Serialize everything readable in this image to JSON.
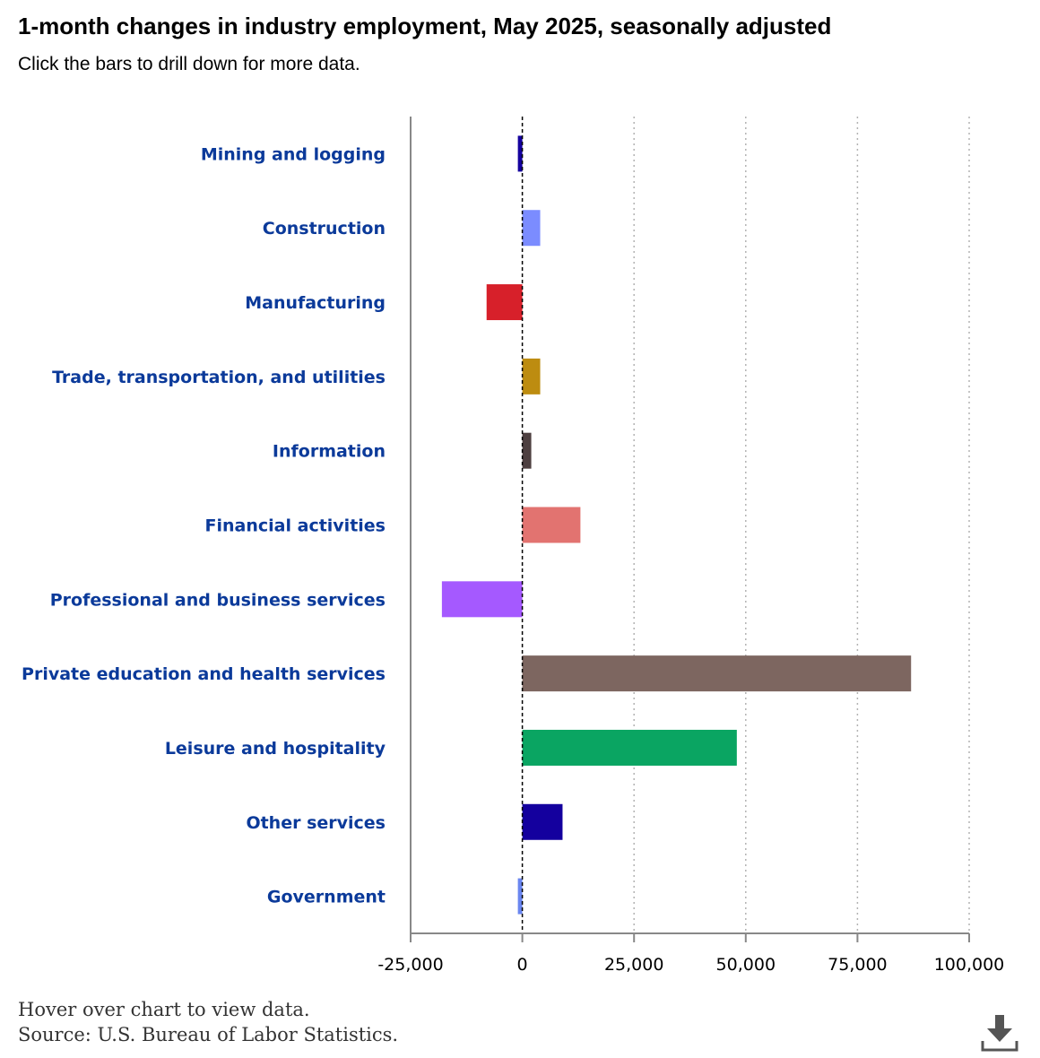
{
  "chart_data": {
    "type": "bar",
    "orientation": "horizontal",
    "title": "1-month changes in industry employment, May 2025, seasonally adjusted",
    "subtitle": "Click the bars to drill down for more data.",
    "categories": [
      "Mining and logging",
      "Construction",
      "Manufacturing",
      "Trade, transportation, and utilities",
      "Information",
      "Financial activities",
      "Professional and business services",
      "Private education and health services",
      "Leisure and hospitality",
      "Other services",
      "Government"
    ],
    "values": [
      -1000,
      4000,
      -8000,
      4000,
      2000,
      13000,
      -18000,
      87000,
      48000,
      9000,
      -1000
    ],
    "colors": [
      "#14009e",
      "#7b8cff",
      "#d7202a",
      "#bd8c10",
      "#4d3f40",
      "#e27370",
      "#a559ff",
      "#7d6660",
      "#0aa562",
      "#14009e",
      "#6a86f0"
    ],
    "xlim": [
      -25000,
      100000
    ],
    "xticks": [
      -25000,
      0,
      25000,
      50000,
      75000,
      100000
    ],
    "xtick_labels": [
      "-25,000",
      "0",
      "25,000",
      "50,000",
      "75,000",
      "100,000"
    ],
    "xlabel": "",
    "ylabel": "",
    "grid": true
  },
  "footer": {
    "hover_note": "Hover over chart to view data.",
    "source": "Source: U.S. Bureau of Labor Statistics."
  },
  "icons": {
    "download": "download-icon"
  }
}
